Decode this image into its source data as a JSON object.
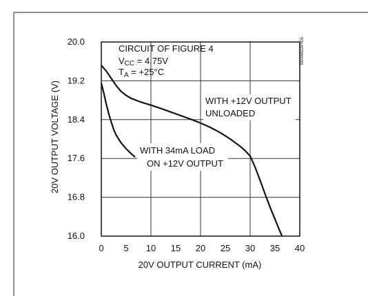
{
  "chart_data": {
    "type": "line",
    "xlabel": "20V OUTPUT CURRENT (mA)",
    "ylabel": "20V OUTPUT VOLTAGE (V)",
    "xlim": [
      0,
      40
    ],
    "ylim": [
      16.0,
      20.0
    ],
    "x_ticks": [
      "0",
      "5",
      "10",
      "15",
      "20",
      "25",
      "30",
      "35",
      "40"
    ],
    "y_ticks": [
      "20.0",
      "19.2",
      "18.4",
      "17.6",
      "16.8",
      "16.0"
    ],
    "grid": true,
    "figure_id": "MAX662AFIG5",
    "annotations": {
      "conditions_line1": "CIRCUIT OF FIGURE 4",
      "vcc_label": "V",
      "vcc_sub": "CC",
      "vcc_value": " = 4.75V",
      "ta_label": "T",
      "ta_sub": "A",
      "ta_value": " = +25°C",
      "unloaded_line1": "WITH +12V OUTPUT",
      "unloaded_line2": "UNLOADED",
      "loaded_line1": "WITH 34mA LOAD",
      "loaded_line2": "ON +12V OUTPUT"
    },
    "series": [
      {
        "x": [
          0,
          1,
          2,
          3,
          4,
          5,
          6,
          8,
          10,
          12,
          15,
          18,
          20,
          22,
          24,
          26,
          28,
          29,
          30,
          31,
          32,
          33,
          34,
          35,
          36,
          37,
          38
        ],
        "y": [
          19.52,
          19.4,
          19.25,
          19.1,
          18.98,
          18.9,
          18.84,
          18.76,
          18.7,
          18.63,
          18.52,
          18.41,
          18.33,
          18.24,
          18.13,
          18.0,
          17.85,
          17.76,
          17.65,
          17.42,
          17.15,
          16.87,
          16.6,
          16.35,
          16.1,
          15.87,
          15.62
        ]
      },
      {
        "x": [
          0,
          0.5,
          1,
          1.5,
          2,
          2.5,
          3,
          4,
          5,
          6,
          6.8
        ],
        "y": [
          19.15,
          18.95,
          18.72,
          18.52,
          18.35,
          18.2,
          18.08,
          17.92,
          17.8,
          17.7,
          17.63
        ]
      }
    ]
  }
}
